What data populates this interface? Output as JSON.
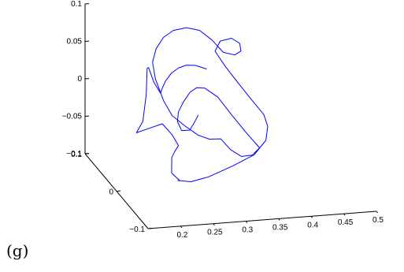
{
  "panel_label": "(g)",
  "chart_data": {
    "type": "line",
    "projection": "3d",
    "grid": false,
    "title": "",
    "xlabel": "",
    "ylabel": "",
    "zlabel": "",
    "xlim": [
      0.15,
      0.5
    ],
    "ylim": [
      -0.1,
      0.1
    ],
    "zlim": [
      -0.1,
      0.1
    ],
    "x_ticks": [
      {
        "value": 0.2,
        "label": "0.2"
      },
      {
        "value": 0.25,
        "label": "0.25"
      },
      {
        "value": 0.3,
        "label": "0.3"
      },
      {
        "value": 0.35,
        "label": "0.35"
      },
      {
        "value": 0.4,
        "label": "0.4"
      },
      {
        "value": 0.45,
        "label": "0.45"
      },
      {
        "value": 0.5,
        "label": "0.5"
      }
    ],
    "y_ticks": [
      {
        "value": 0.1,
        "label": "0.1"
      },
      {
        "value": 0,
        "label": "0"
      },
      {
        "value": -0.1,
        "label": "−0.1"
      }
    ],
    "z_ticks": [
      {
        "value": 0.1,
        "label": "0.1"
      },
      {
        "value": 0.05,
        "label": "0.05"
      },
      {
        "value": 0,
        "label": "0"
      },
      {
        "value": -0.05,
        "label": "−0.05"
      },
      {
        "value": -0.1,
        "label": "−0.1"
      }
    ],
    "series": [
      {
        "color": "#0000ff",
        "points": [
          [
            0.31,
            0.045,
            0.03
          ],
          [
            0.3,
            0.06,
            0.028
          ],
          [
            0.29,
            0.068,
            0.025
          ],
          [
            0.28,
            0.072,
            0.02
          ],
          [
            0.268,
            0.07,
            0.015
          ],
          [
            0.256,
            0.064,
            0.008
          ],
          [
            0.248,
            0.058,
            0.002
          ],
          [
            0.244,
            0.055,
            -0.003
          ],
          [
            0.236,
            0.06,
            0.01
          ],
          [
            0.228,
            0.06,
            0.03
          ],
          [
            0.22,
            0.048,
            0.035
          ],
          [
            0.21,
            0.03,
            0.01
          ],
          [
            0.2,
            0.02,
            -0.02
          ],
          [
            0.195,
            0.03,
            -0.04
          ],
          [
            0.21,
            0.02,
            -0.03
          ],
          [
            0.225,
            0.01,
            -0.02
          ],
          [
            0.235,
            0.0,
            -0.03
          ],
          [
            0.24,
            -0.01,
            -0.04
          ],
          [
            0.232,
            -0.015,
            -0.045
          ],
          [
            0.225,
            -0.02,
            -0.05
          ],
          [
            0.22,
            -0.03,
            -0.055
          ],
          [
            0.215,
            -0.04,
            -0.06
          ],
          [
            0.222,
            -0.05,
            -0.065
          ],
          [
            0.215,
            -0.06,
            -0.06
          ],
          [
            0.228,
            -0.075,
            -0.055
          ],
          [
            0.25,
            -0.085,
            -0.045
          ],
          [
            0.285,
            -0.09,
            -0.03
          ],
          [
            0.32,
            -0.085,
            -0.02
          ],
          [
            0.345,
            -0.07,
            -0.01
          ],
          [
            0.36,
            -0.045,
            -0.005
          ],
          [
            0.366,
            -0.02,
            -0.002
          ],
          [
            0.36,
            0.01,
            0.005
          ],
          [
            0.352,
            0.035,
            0.015
          ],
          [
            0.34,
            0.05,
            0.03
          ],
          [
            0.33,
            0.06,
            0.045
          ],
          [
            0.345,
            0.075,
            0.05
          ],
          [
            0.365,
            0.08,
            0.05
          ],
          [
            0.375,
            0.075,
            0.045
          ],
          [
            0.372,
            0.065,
            0.04
          ],
          [
            0.36,
            0.06,
            0.038
          ],
          [
            0.345,
            0.065,
            0.04
          ],
          [
            0.33,
            0.07,
            0.055
          ],
          [
            0.312,
            0.072,
            0.068
          ],
          [
            0.29,
            0.068,
            0.075
          ],
          [
            0.265,
            0.058,
            0.078
          ],
          [
            0.245,
            0.048,
            0.075
          ],
          [
            0.23,
            0.04,
            0.065
          ],
          [
            0.222,
            0.035,
            0.05
          ],
          [
            0.224,
            0.03,
            0.03
          ],
          [
            0.232,
            0.02,
            0.005
          ],
          [
            0.24,
            0.01,
            -0.01
          ],
          [
            0.255,
            0.0,
            -0.02
          ],
          [
            0.27,
            -0.01,
            -0.028
          ],
          [
            0.285,
            -0.015,
            -0.032
          ],
          [
            0.3,
            -0.02,
            -0.03
          ],
          [
            0.31,
            -0.03,
            -0.04
          ],
          [
            0.322,
            -0.04,
            -0.045
          ],
          [
            0.335,
            -0.048,
            -0.04
          ],
          [
            0.345,
            -0.05,
            -0.03
          ],
          [
            0.335,
            -0.03,
            -0.02
          ],
          [
            0.322,
            -0.01,
            -0.005
          ],
          [
            0.31,
            0.01,
            0.01
          ],
          [
            0.295,
            0.02,
            0.018
          ],
          [
            0.28,
            0.015,
            0.022
          ],
          [
            0.265,
            0.005,
            0.022
          ],
          [
            0.25,
            -0.005,
            0.015
          ],
          [
            0.24,
            -0.01,
            0.005
          ],
          [
            0.236,
            -0.015,
            -0.005
          ],
          [
            0.24,
            -0.02,
            -0.015
          ],
          [
            0.255,
            -0.015,
            -0.018
          ],
          [
            0.27,
            0.0,
            -0.015
          ],
          [
            0.28,
            0.01,
            -0.012
          ]
        ]
      }
    ]
  }
}
